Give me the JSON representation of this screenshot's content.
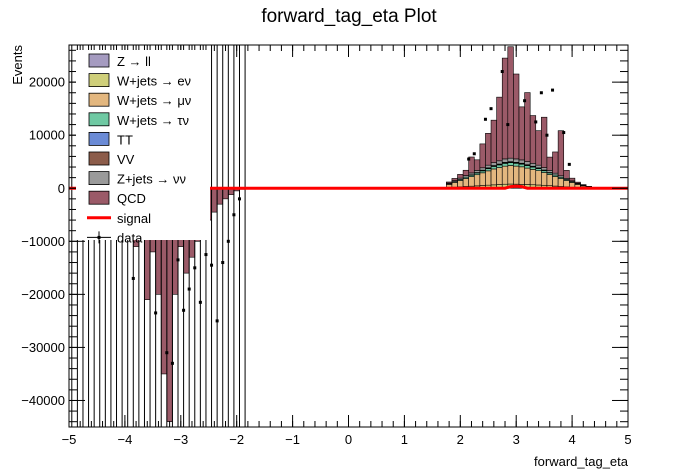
{
  "chart_data": {
    "type": "bar",
    "title": "forward_tag_eta Plot",
    "xlabel": "forward_tag_eta",
    "ylabel": "Events",
    "xlim": [
      -5,
      5
    ],
    "ylim": [
      -45000,
      27000
    ],
    "x_ticks": [
      "−5",
      "−4",
      "−3",
      "−2",
      "−1",
      "0",
      "1",
      "2",
      "3",
      "4",
      "5"
    ],
    "y_ticks": [
      "−40000",
      "−30000",
      "−20000",
      "−10000",
      "0",
      "10000",
      "20000"
    ],
    "x_tick_values": [
      -5,
      -4,
      -3,
      -2,
      -1,
      0,
      1,
      2,
      3,
      4,
      5
    ],
    "y_tick_values": [
      -40000,
      -30000,
      -20000,
      -10000,
      0,
      10000,
      20000
    ],
    "stacked": true,
    "legend_position": "top-left",
    "bin_width": 0.1,
    "series": [
      {
        "name": "Z → ll",
        "color": "#a59bc0",
        "bins": [
          {
            "x": 1.8,
            "y": 30
          },
          {
            "x": 1.9,
            "y": 50
          },
          {
            "x": 2.0,
            "y": 60
          },
          {
            "x": 2.1,
            "y": 80
          },
          {
            "x": 2.2,
            "y": 90
          },
          {
            "x": 2.3,
            "y": 100
          },
          {
            "x": 2.4,
            "y": 110
          },
          {
            "x": 2.5,
            "y": 130
          },
          {
            "x": 2.6,
            "y": 140
          },
          {
            "x": 2.7,
            "y": 150
          },
          {
            "x": 2.8,
            "y": 160
          },
          {
            "x": 2.9,
            "y": 170
          },
          {
            "x": 3.0,
            "y": 170
          },
          {
            "x": 3.1,
            "y": 160
          },
          {
            "x": 3.2,
            "y": 150
          },
          {
            "x": 3.3,
            "y": 140
          },
          {
            "x": 3.4,
            "y": 130
          },
          {
            "x": 3.5,
            "y": 120
          },
          {
            "x": 3.6,
            "y": 100
          },
          {
            "x": 3.7,
            "y": 90
          },
          {
            "x": 3.8,
            "y": 70
          },
          {
            "x": 3.9,
            "y": 60
          },
          {
            "x": 4.0,
            "y": 40
          },
          {
            "x": 4.1,
            "y": 30
          }
        ]
      },
      {
        "name": "W+jets → eν",
        "color": "#cfcf7a",
        "bins": [
          {
            "x": 1.8,
            "y": 100
          },
          {
            "x": 1.9,
            "y": 150
          },
          {
            "x": 2.0,
            "y": 200
          },
          {
            "x": 2.1,
            "y": 260
          },
          {
            "x": 2.2,
            "y": 300
          },
          {
            "x": 2.3,
            "y": 350
          },
          {
            "x": 2.4,
            "y": 400
          },
          {
            "x": 2.5,
            "y": 450
          },
          {
            "x": 2.6,
            "y": 500
          },
          {
            "x": 2.7,
            "y": 550
          },
          {
            "x": 2.8,
            "y": 600
          },
          {
            "x": 2.9,
            "y": 620
          },
          {
            "x": 3.0,
            "y": 600
          },
          {
            "x": 3.1,
            "y": 580
          },
          {
            "x": 3.2,
            "y": 550
          },
          {
            "x": 3.3,
            "y": 520
          },
          {
            "x": 3.4,
            "y": 480
          },
          {
            "x": 3.5,
            "y": 440
          },
          {
            "x": 3.6,
            "y": 380
          },
          {
            "x": 3.7,
            "y": 320
          },
          {
            "x": 3.8,
            "y": 260
          },
          {
            "x": 3.9,
            "y": 200
          },
          {
            "x": 4.0,
            "y": 150
          },
          {
            "x": 4.1,
            "y": 100
          },
          {
            "x": 4.2,
            "y": 60
          },
          {
            "x": 4.3,
            "y": 30
          }
        ]
      },
      {
        "name": "W+jets → μν",
        "color": "#e3b77f",
        "bins": [
          {
            "x": 1.8,
            "y": 600
          },
          {
            "x": 1.9,
            "y": 900
          },
          {
            "x": 2.0,
            "y": 1200
          },
          {
            "x": 2.1,
            "y": 1500
          },
          {
            "x": 2.2,
            "y": 1800
          },
          {
            "x": 2.3,
            "y": 2100
          },
          {
            "x": 2.4,
            "y": 2400
          },
          {
            "x": 2.5,
            "y": 2700
          },
          {
            "x": 2.6,
            "y": 3000
          },
          {
            "x": 2.7,
            "y": 3200
          },
          {
            "x": 2.8,
            "y": 3400
          },
          {
            "x": 2.9,
            "y": 3500
          },
          {
            "x": 3.0,
            "y": 3400
          },
          {
            "x": 3.1,
            "y": 3300
          },
          {
            "x": 3.2,
            "y": 3100
          },
          {
            "x": 3.3,
            "y": 2900
          },
          {
            "x": 3.4,
            "y": 2700
          },
          {
            "x": 3.5,
            "y": 2400
          },
          {
            "x": 3.6,
            "y": 2100
          },
          {
            "x": 3.7,
            "y": 1800
          },
          {
            "x": 3.8,
            "y": 1500
          },
          {
            "x": 3.9,
            "y": 1200
          },
          {
            "x": 4.0,
            "y": 900
          },
          {
            "x": 4.1,
            "y": 600
          },
          {
            "x": 4.2,
            "y": 400
          },
          {
            "x": 4.3,
            "y": 250
          },
          {
            "x": 4.4,
            "y": 150
          },
          {
            "x": 4.5,
            "y": 80
          }
        ]
      },
      {
        "name": "W+jets → τν",
        "color": "#6fc9a3",
        "bins": [
          {
            "x": 1.8,
            "y": 100
          },
          {
            "x": 1.9,
            "y": 150
          },
          {
            "x": 2.0,
            "y": 200
          },
          {
            "x": 2.1,
            "y": 250
          },
          {
            "x": 2.2,
            "y": 300
          },
          {
            "x": 2.3,
            "y": 350
          },
          {
            "x": 2.4,
            "y": 400
          },
          {
            "x": 2.5,
            "y": 450
          },
          {
            "x": 2.6,
            "y": 500
          },
          {
            "x": 2.7,
            "y": 520
          },
          {
            "x": 2.8,
            "y": 550
          },
          {
            "x": 2.9,
            "y": 560
          },
          {
            "x": 3.0,
            "y": 550
          },
          {
            "x": 3.1,
            "y": 530
          },
          {
            "x": 3.2,
            "y": 500
          },
          {
            "x": 3.3,
            "y": 470
          },
          {
            "x": 3.4,
            "y": 430
          },
          {
            "x": 3.5,
            "y": 390
          },
          {
            "x": 3.6,
            "y": 340
          },
          {
            "x": 3.7,
            "y": 290
          },
          {
            "x": 3.8,
            "y": 240
          },
          {
            "x": 3.9,
            "y": 190
          },
          {
            "x": 4.0,
            "y": 140
          },
          {
            "x": 4.1,
            "y": 100
          },
          {
            "x": 4.2,
            "y": 60
          },
          {
            "x": 4.3,
            "y": 30
          }
        ]
      },
      {
        "name": "TT",
        "color": "#6b8bd6",
        "bins": [
          {
            "x": 2.4,
            "y": 30
          },
          {
            "x": 2.5,
            "y": 40
          },
          {
            "x": 2.6,
            "y": 50
          },
          {
            "x": 2.7,
            "y": 50
          },
          {
            "x": 2.8,
            "y": 60
          },
          {
            "x": 2.9,
            "y": 60
          },
          {
            "x": 3.0,
            "y": 60
          },
          {
            "x": 3.1,
            "y": 50
          },
          {
            "x": 3.2,
            "y": 50
          },
          {
            "x": 3.3,
            "y": 40
          },
          {
            "x": 3.4,
            "y": 40
          },
          {
            "x": 3.5,
            "y": 30
          }
        ]
      },
      {
        "name": "VV",
        "color": "#8c5c4a",
        "bins": [
          {
            "x": 2.2,
            "y": 50
          },
          {
            "x": 2.3,
            "y": 60
          },
          {
            "x": 2.4,
            "y": 70
          },
          {
            "x": 2.5,
            "y": 80
          },
          {
            "x": 2.6,
            "y": 90
          },
          {
            "x": 2.7,
            "y": 100
          },
          {
            "x": 2.8,
            "y": 110
          },
          {
            "x": 2.9,
            "y": 110
          },
          {
            "x": 3.0,
            "y": 110
          },
          {
            "x": 3.1,
            "y": 100
          },
          {
            "x": 3.2,
            "y": 90
          },
          {
            "x": 3.3,
            "y": 80
          },
          {
            "x": 3.4,
            "y": 70
          },
          {
            "x": 3.5,
            "y": 60
          },
          {
            "x": 3.6,
            "y": 50
          }
        ]
      },
      {
        "name": "Z+jets → νν",
        "color": "#9a9a9a",
        "bins": [
          {
            "x": 1.8,
            "y": 150
          },
          {
            "x": 1.9,
            "y": 200
          },
          {
            "x": 2.0,
            "y": 250
          },
          {
            "x": 2.1,
            "y": 300
          },
          {
            "x": 2.2,
            "y": 350
          },
          {
            "x": 2.3,
            "y": 400
          },
          {
            "x": 2.4,
            "y": 450
          },
          {
            "x": 2.5,
            "y": 500
          },
          {
            "x": 2.6,
            "y": 550
          },
          {
            "x": 2.7,
            "y": 600
          },
          {
            "x": 2.8,
            "y": 650
          },
          {
            "x": 2.9,
            "y": 650
          },
          {
            "x": 3.0,
            "y": 640
          },
          {
            "x": 3.1,
            "y": 620
          },
          {
            "x": 3.2,
            "y": 590
          },
          {
            "x": 3.3,
            "y": 550
          },
          {
            "x": 3.4,
            "y": 500
          },
          {
            "x": 3.5,
            "y": 450
          },
          {
            "x": 3.6,
            "y": 400
          },
          {
            "x": 3.7,
            "y": 340
          },
          {
            "x": 3.8,
            "y": 280
          },
          {
            "x": 3.9,
            "y": 220
          },
          {
            "x": 4.0,
            "y": 170
          },
          {
            "x": 4.1,
            "y": 120
          },
          {
            "x": 4.2,
            "y": 80
          },
          {
            "x": 4.3,
            "y": 50
          }
        ]
      },
      {
        "name": "QCD",
        "color": "#9b5a68",
        "bins": [
          {
            "x": -3.9,
            "y": -2500
          },
          {
            "x": -3.8,
            "y": -11000
          },
          {
            "x": -3.7,
            "y": -2000
          },
          {
            "x": -3.6,
            "y": -21000
          },
          {
            "x": -3.5,
            "y": -12000
          },
          {
            "x": -3.4,
            "y": -20000
          },
          {
            "x": -3.3,
            "y": -35000
          },
          {
            "x": -3.2,
            "y": -44000
          },
          {
            "x": -3.1,
            "y": -20000
          },
          {
            "x": -3.0,
            "y": -11000
          },
          {
            "x": -2.9,
            "y": -16000
          },
          {
            "x": -2.8,
            "y": -13000
          },
          {
            "x": -2.7,
            "y": -10000
          },
          {
            "x": -2.6,
            "y": -8000
          },
          {
            "x": -2.5,
            "y": -6000
          },
          {
            "x": -2.4,
            "y": -4500
          },
          {
            "x": -2.3,
            "y": -3000
          },
          {
            "x": -2.2,
            "y": -2000
          },
          {
            "x": -2.1,
            "y": -1200
          },
          {
            "x": -2.0,
            "y": -500
          },
          {
            "x": -1.9,
            "y": -200
          },
          {
            "x": 1.8,
            "y": 200
          },
          {
            "x": 1.9,
            "y": 400
          },
          {
            "x": 2.0,
            "y": 700
          },
          {
            "x": 2.1,
            "y": 1000
          },
          {
            "x": 2.2,
            "y": 3000
          },
          {
            "x": 2.3,
            "y": 2000
          },
          {
            "x": 2.4,
            "y": 4500
          },
          {
            "x": 2.5,
            "y": 6000
          },
          {
            "x": 2.6,
            "y": 8000
          },
          {
            "x": 2.7,
            "y": 12000
          },
          {
            "x": 2.8,
            "y": 19000
          },
          {
            "x": 2.9,
            "y": 21000
          },
          {
            "x": 3.0,
            "y": 16000
          },
          {
            "x": 3.1,
            "y": 10000
          },
          {
            "x": 3.2,
            "y": 13000
          },
          {
            "x": 3.3,
            "y": 9000
          },
          {
            "x": 3.4,
            "y": 6500
          },
          {
            "x": 3.5,
            "y": 9500
          },
          {
            "x": 3.6,
            "y": 2500
          },
          {
            "x": 3.7,
            "y": 4000
          },
          {
            "x": 3.8,
            "y": 8500
          },
          {
            "x": 3.9,
            "y": 1500
          },
          {
            "x": 4.0,
            "y": 500
          },
          {
            "x": 4.1,
            "y": 200
          },
          {
            "x": 4.2,
            "y": 80
          }
        ]
      }
    ],
    "signal": {
      "name": "signal",
      "color": "#ff0000",
      "points": [
        {
          "x": -5,
          "y": 0
        },
        {
          "x": 2.8,
          "y": 0
        },
        {
          "x": 2.9,
          "y": 300
        },
        {
          "x": 3.0,
          "y": 400
        },
        {
          "x": 3.1,
          "y": 300
        },
        {
          "x": 3.2,
          "y": 0
        },
        {
          "x": 5,
          "y": 0
        }
      ]
    },
    "data": {
      "name": "data",
      "color": "#000000",
      "points": [
        {
          "x": -3.85,
          "y": -17000
        },
        {
          "x": -3.65,
          "y": -3000
        },
        {
          "x": -3.45,
          "y": -23500
        },
        {
          "x": -3.25,
          "y": -31000
        },
        {
          "x": -3.15,
          "y": -33000
        },
        {
          "x": -3.05,
          "y": -13500
        },
        {
          "x": -2.95,
          "y": -23000
        },
        {
          "x": -2.85,
          "y": -19000
        },
        {
          "x": -2.75,
          "y": -15000
        },
        {
          "x": -2.65,
          "y": -21500
        },
        {
          "x": -2.55,
          "y": -12500
        },
        {
          "x": -2.45,
          "y": -14500
        },
        {
          "x": -2.35,
          "y": -25000
        },
        {
          "x": -2.25,
          "y": -14000
        },
        {
          "x": -2.15,
          "y": -10000
        },
        {
          "x": -2.05,
          "y": -5000
        },
        {
          "x": -1.95,
          "y": -2000
        },
        {
          "x": 2.15,
          "y": 5500
        },
        {
          "x": 2.25,
          "y": 6500
        },
        {
          "x": 2.45,
          "y": 13000
        },
        {
          "x": 2.55,
          "y": 15000
        },
        {
          "x": 2.75,
          "y": 22000
        },
        {
          "x": 2.85,
          "y": 12000
        },
        {
          "x": 3.15,
          "y": 16500
        },
        {
          "x": 3.35,
          "y": 12500
        },
        {
          "x": 3.45,
          "y": 18000
        },
        {
          "x": 3.55,
          "y": 10000
        },
        {
          "x": 3.65,
          "y": 18500
        },
        {
          "x": 3.85,
          "y": 10500
        },
        {
          "x": 3.95,
          "y": 4500
        }
      ],
      "error_band": {
        "x_from": -5.0,
        "x_to": -1.9,
        "y_from": -45000,
        "y_to": 27000
      }
    }
  }
}
